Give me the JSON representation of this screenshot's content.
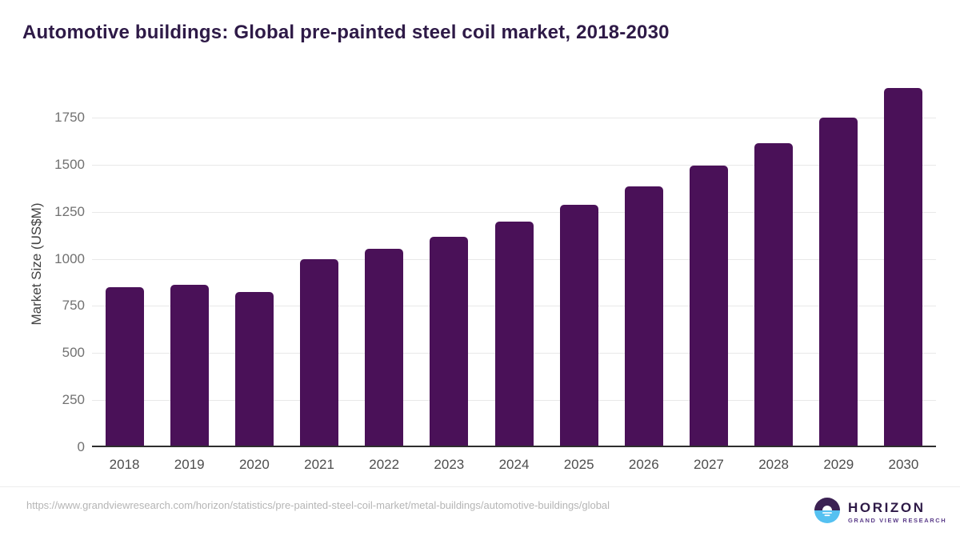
{
  "page": {
    "title": "Automotive buildings: Global pre-painted steel coil market, 2018-2030",
    "source_url": "https://www.grandviewresearch.com/horizon/statistics/pre-painted-steel-coil-market/metal-buildings/automotive-buildings/global"
  },
  "chart_data": {
    "type": "bar",
    "title": "Automotive buildings: Global pre-painted steel coil market, 2018-2030",
    "categories": [
      "2018",
      "2019",
      "2020",
      "2021",
      "2022",
      "2023",
      "2024",
      "2025",
      "2026",
      "2027",
      "2028",
      "2029",
      "2030"
    ],
    "values": [
      840,
      855,
      815,
      990,
      1045,
      1110,
      1190,
      1280,
      1375,
      1485,
      1605,
      1740,
      1900
    ],
    "xlabel": "",
    "ylabel": "Market Size (US$M)",
    "ylim": [
      0,
      1950
    ],
    "yticks": [
      0,
      250,
      500,
      750,
      1000,
      1250,
      1500,
      1750
    ],
    "grid": "horizontal-only",
    "legend_position": "none",
    "bar_color": "#4a1158"
  },
  "branding": {
    "logo_name": "HORIZON",
    "logo_subtitle": "GRAND VIEW RESEARCH",
    "colors": {
      "title_text": "#2e1a47",
      "bar": "#4a1158",
      "logo_circle_top": "#3b2153",
      "logo_circle_bottom": "#55c1f1",
      "logo_name_text": "#2e1a47",
      "logo_subtitle_text": "#5b3d8a"
    }
  }
}
